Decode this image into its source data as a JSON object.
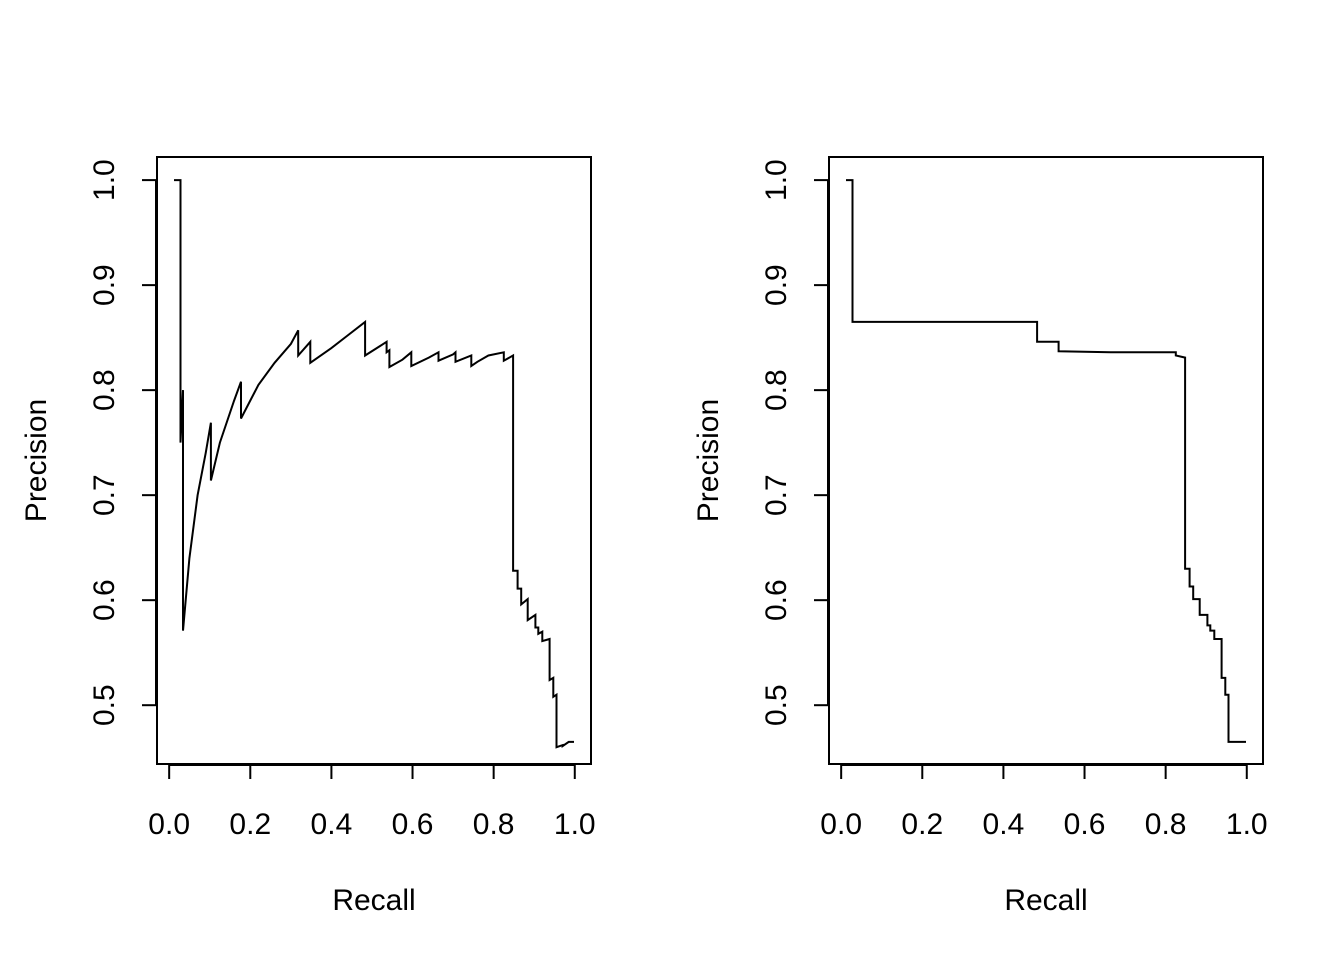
{
  "chart_data": [
    {
      "type": "line",
      "xlabel": "Recall",
      "ylabel": "Precision",
      "xlim": [
        -0.03,
        1.04
      ],
      "ylim": [
        0.444,
        1.022
      ],
      "x_ticks": [
        0.0,
        0.2,
        0.4,
        0.6,
        0.8,
        1.0
      ],
      "x_tick_labels": [
        "0.0",
        "0.2",
        "0.4",
        "0.6",
        "0.8",
        "1.0"
      ],
      "y_ticks": [
        0.5,
        0.6,
        0.7,
        0.8,
        0.9,
        1.0
      ],
      "y_tick_labels": [
        "0.5",
        "0.6",
        "0.7",
        "0.8",
        "0.9",
        "1.0"
      ],
      "grid": false,
      "legend": "none",
      "line_color": "#000000",
      "series": [
        {
          "points": [
            [
              0.012,
              1.0
            ],
            [
              0.028,
              1.0
            ],
            [
              0.028,
              0.75
            ],
            [
              0.034,
              0.8
            ],
            [
              0.034,
              0.571
            ],
            [
              0.05,
              0.64
            ],
            [
              0.07,
              0.7
            ],
            [
              0.09,
              0.74
            ],
            [
              0.103,
              0.769
            ],
            [
              0.103,
              0.714
            ],
            [
              0.125,
              0.75
            ],
            [
              0.16,
              0.79
            ],
            [
              0.177,
              0.808
            ],
            [
              0.177,
              0.773
            ],
            [
              0.22,
              0.805
            ],
            [
              0.26,
              0.826
            ],
            [
              0.3,
              0.844
            ],
            [
              0.318,
              0.857
            ],
            [
              0.318,
              0.833
            ],
            [
              0.348,
              0.846
            ],
            [
              0.348,
              0.826
            ],
            [
              0.4,
              0.84
            ],
            [
              0.44,
              0.852
            ],
            [
              0.483,
              0.865
            ],
            [
              0.483,
              0.833
            ],
            [
              0.52,
              0.842
            ],
            [
              0.536,
              0.846
            ],
            [
              0.536,
              0.836
            ],
            [
              0.543,
              0.838
            ],
            [
              0.543,
              0.822
            ],
            [
              0.575,
              0.829
            ],
            [
              0.597,
              0.836
            ],
            [
              0.597,
              0.823
            ],
            [
              0.64,
              0.831
            ],
            [
              0.664,
              0.836
            ],
            [
              0.664,
              0.828
            ],
            [
              0.7,
              0.834
            ],
            [
              0.706,
              0.836
            ],
            [
              0.706,
              0.827
            ],
            [
              0.745,
              0.833
            ],
            [
              0.745,
              0.823
            ],
            [
              0.76,
              0.827
            ],
            [
              0.787,
              0.833
            ],
            [
              0.825,
              0.836
            ],
            [
              0.825,
              0.828
            ],
            [
              0.848,
              0.833
            ],
            [
              0.848,
              0.628
            ],
            [
              0.859,
              0.628
            ],
            [
              0.859,
              0.611
            ],
            [
              0.868,
              0.611
            ],
            [
              0.868,
              0.596
            ],
            [
              0.884,
              0.601
            ],
            [
              0.884,
              0.581
            ],
            [
              0.903,
              0.586
            ],
            [
              0.903,
              0.574
            ],
            [
              0.91,
              0.574
            ],
            [
              0.91,
              0.568
            ],
            [
              0.92,
              0.57
            ],
            [
              0.92,
              0.561
            ],
            [
              0.938,
              0.563
            ],
            [
              0.938,
              0.524
            ],
            [
              0.947,
              0.526
            ],
            [
              0.947,
              0.508
            ],
            [
              0.955,
              0.51
            ],
            [
              0.955,
              0.46
            ],
            [
              0.97,
              0.462
            ],
            [
              0.97,
              0.461
            ],
            [
              0.985,
              0.465
            ],
            [
              0.998,
              0.465
            ]
          ]
        }
      ]
    },
    {
      "type": "line",
      "xlabel": "Recall",
      "ylabel": "Precision",
      "xlim": [
        -0.03,
        1.04
      ],
      "ylim": [
        0.444,
        1.022
      ],
      "x_ticks": [
        0.0,
        0.2,
        0.4,
        0.6,
        0.8,
        1.0
      ],
      "x_tick_labels": [
        "0.0",
        "0.2",
        "0.4",
        "0.6",
        "0.8",
        "1.0"
      ],
      "y_ticks": [
        0.5,
        0.6,
        0.7,
        0.8,
        0.9,
        1.0
      ],
      "y_tick_labels": [
        "0.5",
        "0.6",
        "0.7",
        "0.8",
        "0.9",
        "1.0"
      ],
      "grid": false,
      "legend": "none",
      "line_color": "#000000",
      "series": [
        {
          "points": [
            [
              0.012,
              1.0
            ],
            [
              0.028,
              1.0
            ],
            [
              0.028,
              0.865
            ],
            [
              0.483,
              0.865
            ],
            [
              0.483,
              0.846
            ],
            [
              0.536,
              0.846
            ],
            [
              0.536,
              0.837
            ],
            [
              0.664,
              0.836
            ],
            [
              0.825,
              0.836
            ],
            [
              0.825,
              0.833
            ],
            [
              0.848,
              0.831
            ],
            [
              0.848,
              0.63
            ],
            [
              0.859,
              0.63
            ],
            [
              0.859,
              0.613
            ],
            [
              0.868,
              0.613
            ],
            [
              0.868,
              0.601
            ],
            [
              0.884,
              0.601
            ],
            [
              0.884,
              0.586
            ],
            [
              0.903,
              0.586
            ],
            [
              0.903,
              0.576
            ],
            [
              0.91,
              0.576
            ],
            [
              0.91,
              0.571
            ],
            [
              0.92,
              0.571
            ],
            [
              0.92,
              0.563
            ],
            [
              0.938,
              0.563
            ],
            [
              0.938,
              0.526
            ],
            [
              0.947,
              0.526
            ],
            [
              0.947,
              0.51
            ],
            [
              0.955,
              0.51
            ],
            [
              0.955,
              0.465
            ],
            [
              0.998,
              0.465
            ]
          ]
        }
      ]
    }
  ]
}
